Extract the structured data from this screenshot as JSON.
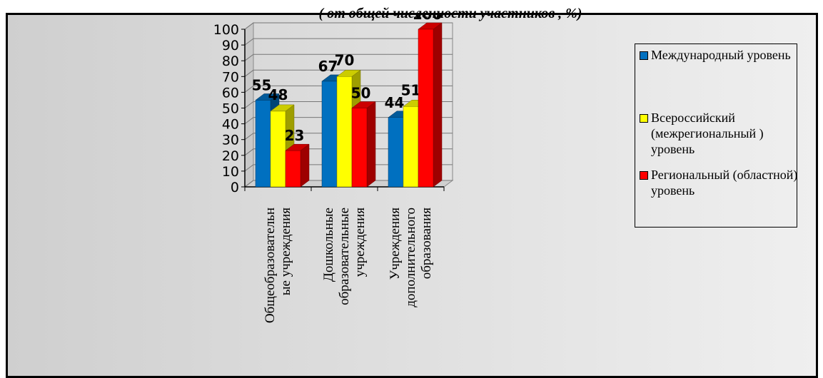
{
  "chart_data": {
    "type": "bar",
    "title": "( от общей численности участников , %)",
    "categories": [
      "Общеобразовательн\nые учреждения",
      "Дошкольные\nобразовательные\nучреждения",
      "Учреждения\nдополнительного\nобразования"
    ],
    "series": [
      {
        "name": "Международный уровень",
        "values": [
          55,
          67,
          44
        ],
        "color": "#0070c0"
      },
      {
        "name": "Всероссийский (межрегиональный ) уровень",
        "values": [
          48,
          70,
          51
        ],
        "color": "#ffff00"
      },
      {
        "name": "Региональный (областной) уровень",
        "values": [
          23,
          50,
          100
        ],
        "color": "#ff0000"
      }
    ],
    "ylim": [
      0,
      100
    ],
    "yticks": [
      0,
      10,
      20,
      30,
      40,
      50,
      60,
      70,
      80,
      90,
      100
    ],
    "grid": true,
    "legend": "right",
    "style": "3d-column"
  },
  "legend_items": [
    {
      "text": "Международный уровень",
      "color": "#0070c0"
    },
    {
      "text": "Всероссийский (межрегиональный ) уровень",
      "color": "#ffff00"
    },
    {
      "text": "Региональный (областной) уровень",
      "color": "#ff0000"
    }
  ]
}
